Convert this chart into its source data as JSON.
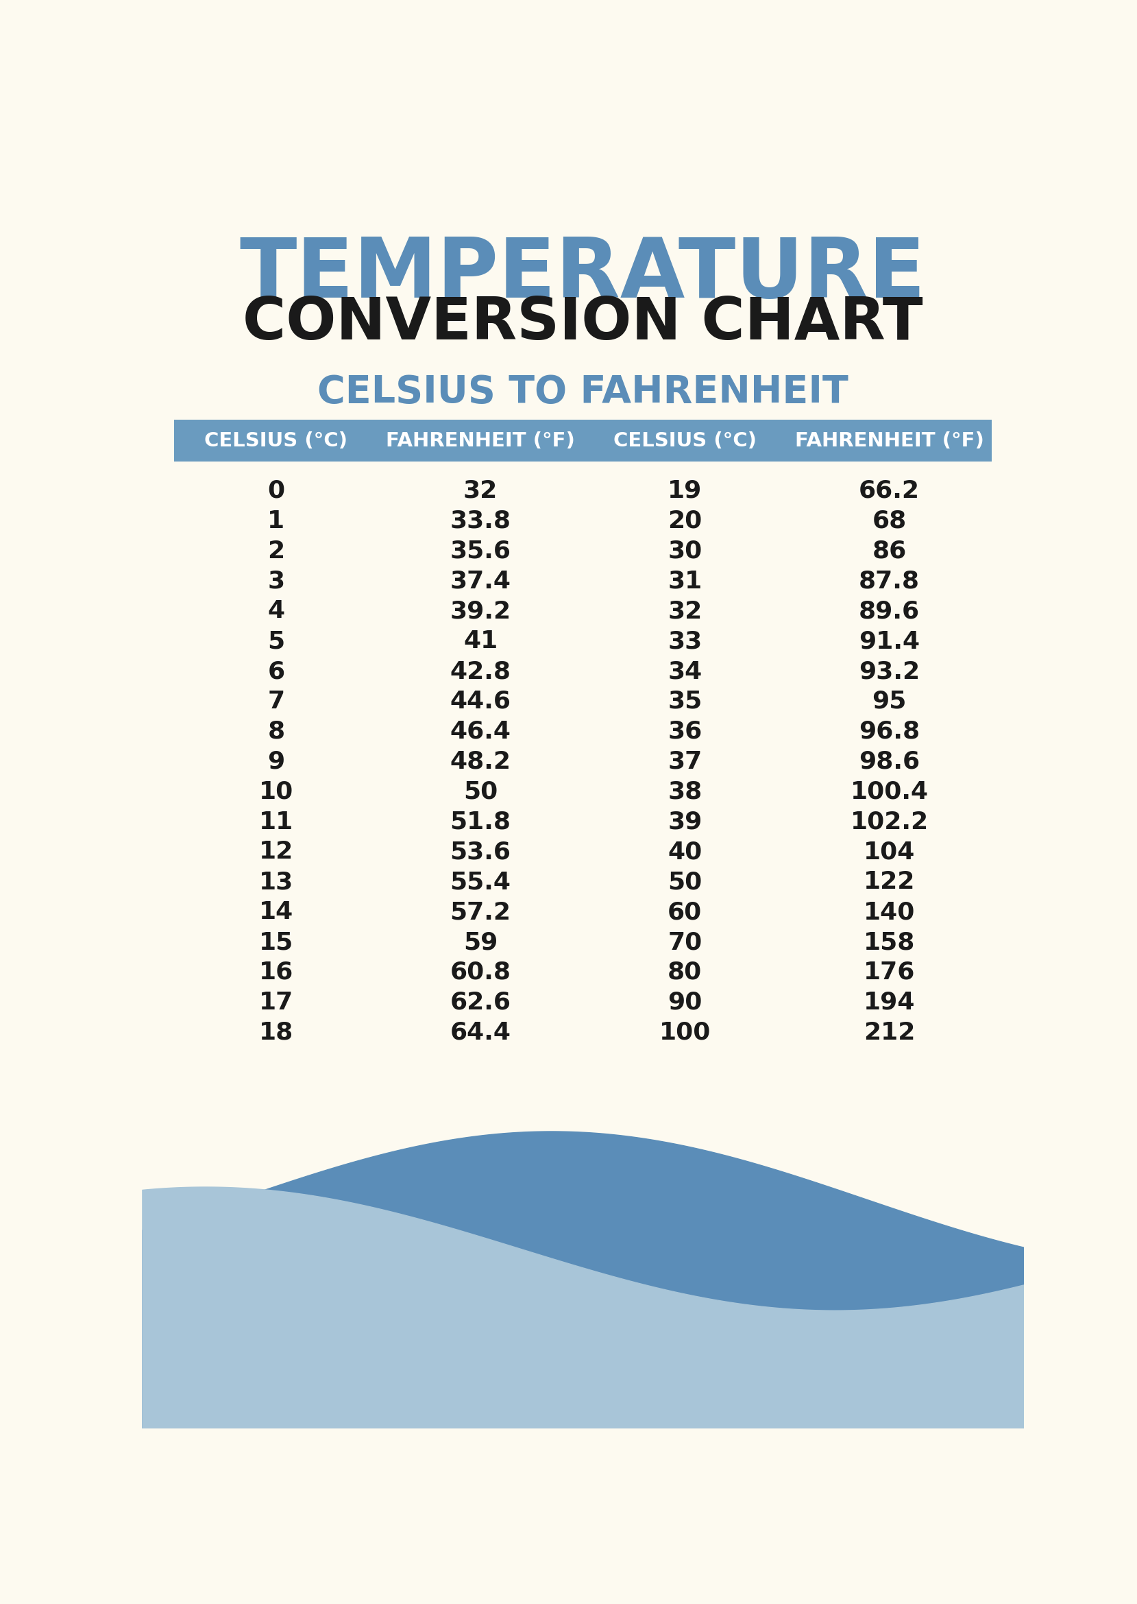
{
  "title_line1": "TEMPERATURE",
  "title_line2": "CONVERSION CHART",
  "subtitle": "CELSIUS TO FAHRENHEIT",
  "bg_color": "#FDFAF0",
  "title_color": "#5B8DB8",
  "subtitle_color": "#5B8DB8",
  "header_bg_color": "#6A9BBF",
  "header_text_color": "#FFFFFF",
  "data_text_color": "#1a1a1a",
  "wave_color1": "#5B8DB8",
  "wave_color2": "#A8C5D8",
  "col_headers": [
    "CELSIUS (°C)",
    "FAHRENHEIT (°F)",
    "CELSIUS (°C)",
    "FAHRENHEIT (°F)"
  ],
  "col1_celsius": [
    0,
    1,
    2,
    3,
    4,
    5,
    6,
    7,
    8,
    9,
    10,
    11,
    12,
    13,
    14,
    15,
    16,
    17,
    18
  ],
  "col1_fahrenheit": [
    "32",
    "33.8",
    "35.6",
    "37.4",
    "39.2",
    "41",
    "42.8",
    "44.6",
    "46.4",
    "48.2",
    "50",
    "51.8",
    "53.6",
    "55.4",
    "57.2",
    "59",
    "60.8",
    "62.6",
    "64.4"
  ],
  "col2_celsius": [
    19,
    20,
    30,
    31,
    32,
    33,
    34,
    35,
    36,
    37,
    38,
    39,
    40,
    50,
    60,
    70,
    80,
    90,
    100
  ],
  "col2_fahrenheit": [
    "66.2",
    "68",
    "86",
    "87.8",
    "89.6",
    "91.4",
    "93.2",
    "95",
    "96.8",
    "98.6",
    "100.4",
    "102.2",
    "104",
    "122",
    "140",
    "158",
    "176",
    "194",
    "212"
  ]
}
